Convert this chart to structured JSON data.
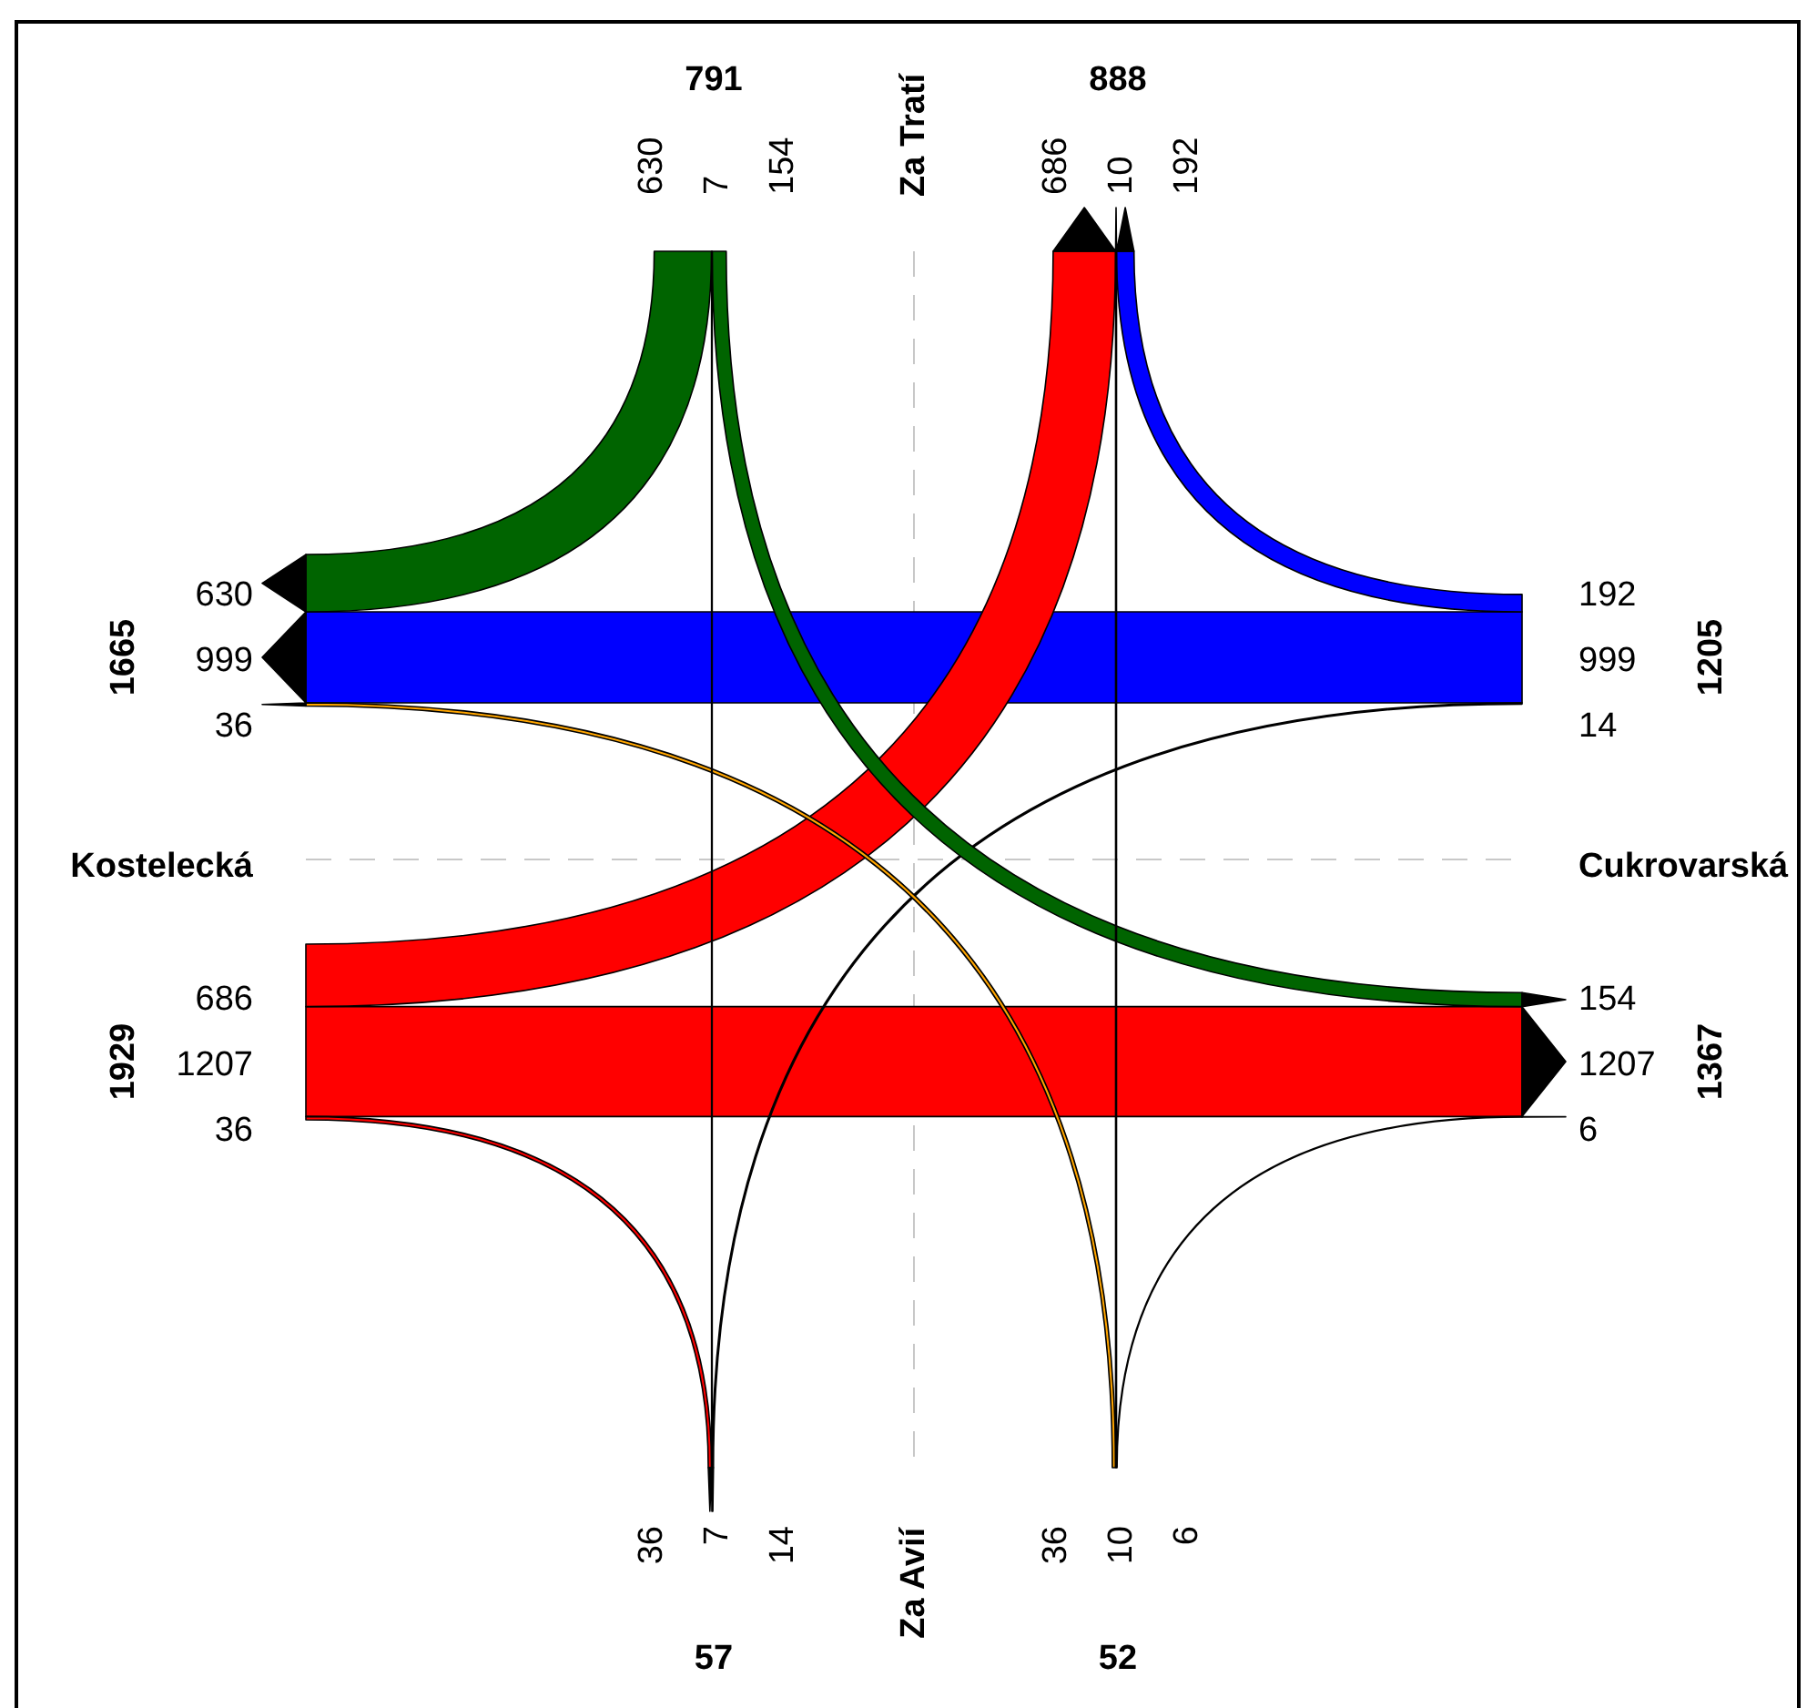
{
  "chart_data": {
    "type": "other",
    "categories": [
      "Za Tratí",
      "Cukrovarská",
      "Za Avií",
      "Kostelecká"
    ],
    "series": [
      {
        "color": "#006400",
        "values": [
          null,
          154,
          7,
          630
        ]
      },
      {
        "color": "#0000ff",
        "values": [
          192,
          null,
          14,
          999
        ]
      },
      {
        "color": "#ffa500",
        "values": [
          10,
          6,
          null,
          36
        ]
      },
      {
        "color": "#ff0000",
        "values": [
          686,
          1207,
          36,
          null
        ]
      },
      {
        "color": "#000000",
        "values": [
          null,
          192,
          10,
          686
        ]
      },
      {
        "color": "#000000",
        "values": [
          154,
          null,
          6,
          1207
        ]
      },
      {
        "color": "#000000",
        "values": [
          7,
          14,
          null,
          36
        ]
      },
      {
        "color": "#000000",
        "values": [
          630,
          999,
          36,
          null
        ]
      }
    ],
    "totals": [
      "791",
      "1205",
      "52",
      "1929",
      "888",
      "1367",
      "57",
      "1665"
    ],
    "data_labels": true
  }
}
